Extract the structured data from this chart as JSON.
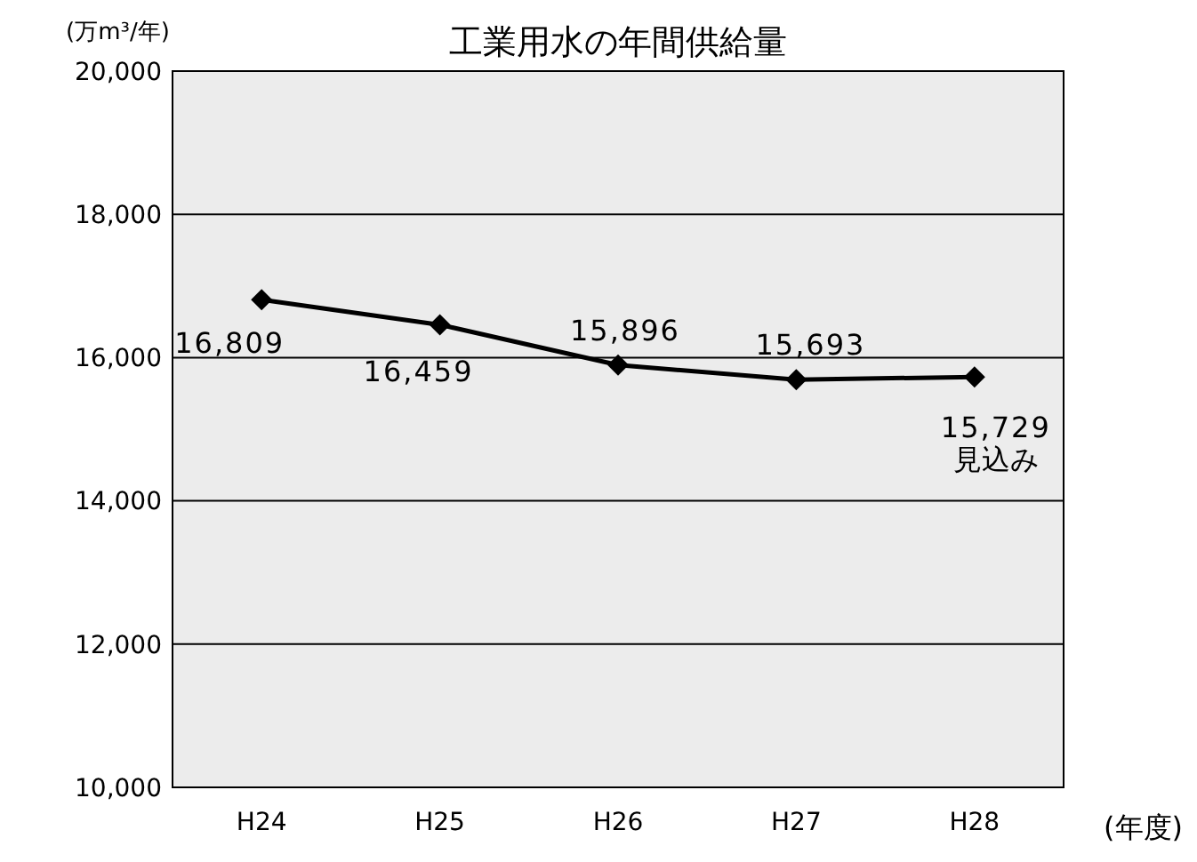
{
  "chart_data": {
    "type": "line",
    "title": "工業用水の年間供給量",
    "ylabel": "(万m³/年)",
    "xlabel": "(年度)",
    "categories": [
      "H24",
      "H25",
      "H26",
      "H27",
      "H28"
    ],
    "series": [
      {
        "color": "#000000",
        "values": [
          16809,
          16459,
          15896,
          15693,
          15729
        ],
        "value_labels": [
          "16,809",
          "16,459",
          "15,896",
          "15,693",
          "15,729"
        ]
      }
    ],
    "annotations": [
      {
        "text": "見込み",
        "x": "H28",
        "y": 15729
      }
    ],
    "ylim": [
      10000,
      20000
    ],
    "yticks": [
      {
        "value": 10000,
        "label": "10,000"
      },
      {
        "value": 12000,
        "label": "12,000"
      },
      {
        "value": 14000,
        "label": "14,000"
      },
      {
        "value": 16000,
        "label": "16,000"
      },
      {
        "value": 18000,
        "label": "18,000"
      },
      {
        "value": 20000,
        "label": "20,000"
      }
    ],
    "grid": "y",
    "marker": "diamond",
    "line_style": "solid"
  }
}
